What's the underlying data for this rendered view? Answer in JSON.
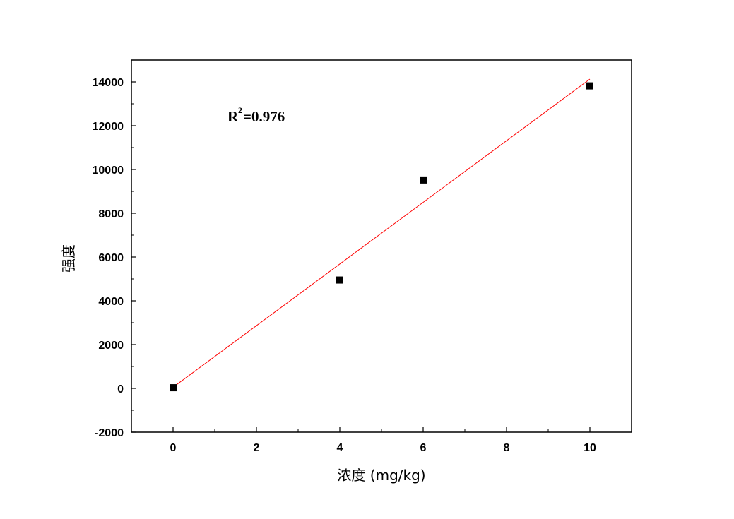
{
  "chart_data": {
    "type": "scatter",
    "title": "",
    "xlabel": "浓度 (mg/kg)",
    "ylabel": "强度",
    "xlim": [
      -1,
      11
    ],
    "ylim": [
      -2000,
      15000
    ],
    "xticks": [
      0,
      2,
      4,
      6,
      8,
      10
    ],
    "yticks": [
      -2000,
      0,
      2000,
      4000,
      6000,
      8000,
      10000,
      12000,
      14000
    ],
    "grid": false,
    "series": [
      {
        "x": [
          0,
          4,
          6,
          10
        ],
        "y": [
          30,
          4950,
          9520,
          13820
        ],
        "marker": "square",
        "color": "#000000"
      }
    ],
    "fit_line": {
      "x": [
        0,
        10
      ],
      "y": [
        50,
        14130
      ],
      "color": "#ff0000"
    },
    "annotation": {
      "base": "R",
      "sup": "2",
      "rest": "=0.976"
    }
  }
}
